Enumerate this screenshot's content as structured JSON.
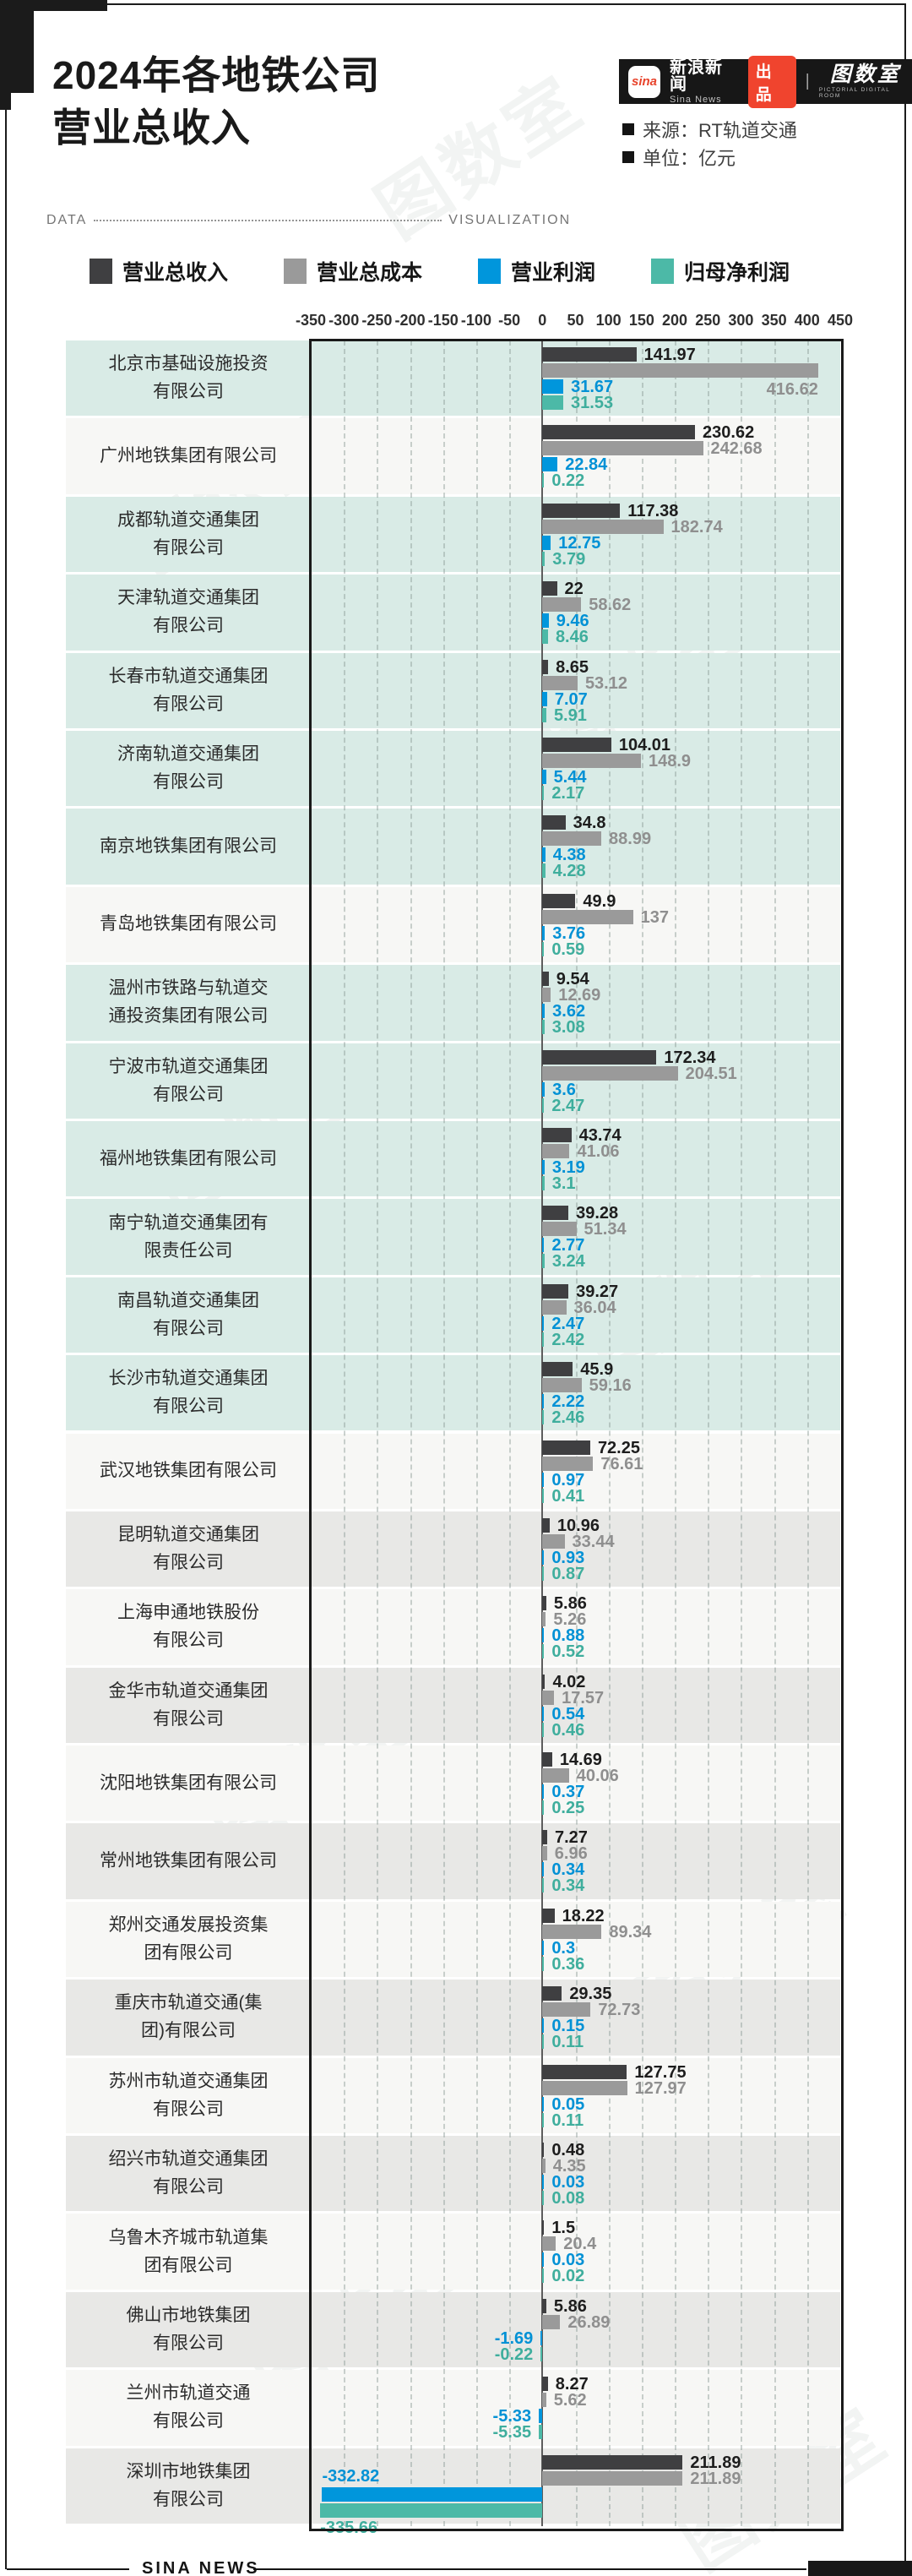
{
  "header": {
    "title_line1": "2024年各地铁公司",
    "title_line2": "营业总收入",
    "brand": {
      "sina_logo_text": "sina",
      "sina_name_cn": "新浪新闻",
      "sina_name_en": "Sina News",
      "badge": "出品",
      "divider": "|",
      "studio_logo": "图数室",
      "studio_sub": "PICTORIAL DIGITAL ROOM"
    },
    "source_line": "来源：RT轨道交通",
    "unit_line": "单位：亿元",
    "data_label": "DATA",
    "viz_label": "VISUALIZATION"
  },
  "footer": {
    "text": "SINA NEWS"
  },
  "watermark_text": "图数室",
  "legend": [
    {
      "label": "营业总收入",
      "color": "#3f3f41"
    },
    {
      "label": "营业总成本",
      "color": "#9a9a9a"
    },
    {
      "label": "营业利润",
      "color": "#0096dc"
    },
    {
      "label": "归母净利润",
      "color": "#4cb9a7"
    }
  ],
  "chart_data": {
    "type": "bar",
    "orientation": "horizontal",
    "title": "2024年各地铁公司营业总收入",
    "unit": "亿元",
    "source": "RT轨道交通",
    "axis": {
      "min": -350,
      "max": 450,
      "step": 50,
      "tick_labels": [
        "-350",
        "-300",
        "-250",
        "-200",
        "-150",
        "-100",
        "-50",
        "0",
        "50",
        "100",
        "150",
        "200",
        "250",
        "300",
        "350",
        "400",
        "450"
      ]
    },
    "series": [
      "营业总收入",
      "营业总成本",
      "营业利润",
      "归母净利润"
    ],
    "series_colors": [
      "#3f3f41",
      "#9a9a9a",
      "#0096dc",
      "#4cb9a7"
    ],
    "label_colors": [
      "#1d1d1d",
      "#8f8f8f",
      "#0191d5",
      "#3fae9d"
    ],
    "band_colors": {
      "teal": "#d9ebe6",
      "white": "#f7f7f5",
      "gray": "#e8e8e6"
    },
    "companies": [
      {
        "name": [
          "北京市基础设施投资",
          "有限公司"
        ],
        "band": "teal",
        "values": [
          141.97,
          416.62,
          31.67,
          31.53
        ],
        "labels": [
          "141.97",
          "416.62",
          "31.67",
          "31.53"
        ],
        "overrides": {
          "1": "below-end"
        }
      },
      {
        "name": [
          "广州地铁集团有限公司"
        ],
        "band": "white",
        "values": [
          230.62,
          242.68,
          22.84,
          0.22
        ],
        "labels": [
          "230.62",
          "242.68",
          "22.84",
          "0.22"
        ]
      },
      {
        "name": [
          "成都轨道交通集团",
          "有限公司"
        ],
        "band": "teal",
        "values": [
          117.38,
          182.74,
          12.75,
          3.79
        ],
        "labels": [
          "117.38",
          "182.74",
          "12.75",
          "3.79"
        ]
      },
      {
        "name": [
          "天津轨道交通集团",
          "有限公司"
        ],
        "band": "teal",
        "values": [
          22,
          58.62,
          9.46,
          8.46
        ],
        "labels": [
          "22",
          "58.62",
          "9.46",
          "8.46"
        ]
      },
      {
        "name": [
          "长春市轨道交通集团",
          "有限公司"
        ],
        "band": "teal",
        "values": [
          8.65,
          53.12,
          7.07,
          5.91
        ],
        "labels": [
          "8.65",
          "53.12",
          "7.07",
          "5.91"
        ]
      },
      {
        "name": [
          "济南轨道交通集团",
          "有限公司"
        ],
        "band": "teal",
        "values": [
          104.01,
          148.9,
          5.44,
          2.17
        ],
        "labels": [
          "104.01",
          "148.9",
          "5.44",
          "2.17"
        ]
      },
      {
        "name": [
          "南京地铁集团有限公司"
        ],
        "band": "teal",
        "values": [
          34.8,
          88.99,
          4.38,
          4.28
        ],
        "labels": [
          "34.8",
          "88.99",
          "4.38",
          "4.28"
        ]
      },
      {
        "name": [
          "青岛地铁集团有限公司"
        ],
        "band": "white",
        "values": [
          49.9,
          137,
          3.76,
          0.59
        ],
        "labels": [
          "49.9",
          "137",
          "3.76",
          "0.59"
        ]
      },
      {
        "name": [
          "温州市铁路与轨道交",
          "通投资集团有限公司"
        ],
        "band": "teal",
        "values": [
          9.54,
          12.69,
          3.62,
          3.08
        ],
        "labels": [
          "9.54",
          "12.69",
          "3.62",
          "3.08"
        ]
      },
      {
        "name": [
          "宁波市轨道交通集团",
          "有限公司"
        ],
        "band": "teal",
        "values": [
          172.34,
          204.51,
          3.6,
          2.47
        ],
        "labels": [
          "172.34",
          "204.51",
          "3.6",
          "2.47"
        ]
      },
      {
        "name": [
          "福州地铁集团有限公司"
        ],
        "band": "teal",
        "values": [
          43.74,
          41.06,
          3.19,
          3.1
        ],
        "labels": [
          "43.74",
          "41.06",
          "3.19",
          "3.1"
        ]
      },
      {
        "name": [
          "南宁轨道交通集团有",
          "限责任公司"
        ],
        "band": "teal",
        "values": [
          39.28,
          51.34,
          2.77,
          3.24
        ],
        "labels": [
          "39.28",
          "51.34",
          "2.77",
          "3.24"
        ]
      },
      {
        "name": [
          "南昌轨道交通集团",
          "有限公司"
        ],
        "band": "teal",
        "values": [
          39.27,
          36.04,
          2.47,
          2.42
        ],
        "labels": [
          "39.27",
          "36.04",
          "2.47",
          "2.42"
        ]
      },
      {
        "name": [
          "长沙市轨道交通集团",
          "有限公司"
        ],
        "band": "teal",
        "values": [
          45.9,
          59.16,
          2.22,
          2.46
        ],
        "labels": [
          "45.9",
          "59.16",
          "2.22",
          "2.46"
        ]
      },
      {
        "name": [
          "武汉地铁集团有限公司"
        ],
        "band": "white",
        "values": [
          72.25,
          76.61,
          0.97,
          0.41
        ],
        "labels": [
          "72.25",
          "76.61",
          "0.97",
          "0.41"
        ]
      },
      {
        "name": [
          "昆明轨道交通集团",
          "有限公司"
        ],
        "band": "gray",
        "values": [
          10.96,
          33.44,
          0.93,
          0.87
        ],
        "labels": [
          "10.96",
          "33.44",
          "0.93",
          "0.87"
        ]
      },
      {
        "name": [
          "上海申通地铁股份",
          "有限公司"
        ],
        "band": "white",
        "values": [
          5.86,
          5.26,
          0.88,
          0.52
        ],
        "labels": [
          "5.86",
          "5.26",
          "0.88",
          "0.52"
        ]
      },
      {
        "name": [
          "金华市轨道交通集团",
          "有限公司"
        ],
        "band": "gray",
        "values": [
          4.02,
          17.57,
          0.54,
          0.46
        ],
        "labels": [
          "4.02",
          "17.57",
          "0.54",
          "0.46"
        ]
      },
      {
        "name": [
          "沈阳地铁集团有限公司"
        ],
        "band": "white",
        "values": [
          14.69,
          40.06,
          0.37,
          0.25
        ],
        "labels": [
          "14.69",
          "40.06",
          "0.37",
          "0.25"
        ]
      },
      {
        "name": [
          "常州地铁集团有限公司"
        ],
        "band": "gray",
        "values": [
          7.27,
          6.96,
          0.34,
          0.34
        ],
        "labels": [
          "7.27",
          "6.96",
          "0.34",
          "0.34"
        ]
      },
      {
        "name": [
          "郑州交通发展投资集",
          "团有限公司"
        ],
        "band": "white",
        "values": [
          18.22,
          89.34,
          0.3,
          0.36
        ],
        "labels": [
          "18.22",
          "89.34",
          "0.3",
          "0.36"
        ]
      },
      {
        "name": [
          "重庆市轨道交通(集",
          "团)有限公司"
        ],
        "band": "gray",
        "values": [
          29.35,
          72.73,
          0.15,
          0.11
        ],
        "labels": [
          "29.35",
          "72.73",
          "0.15",
          "0.11"
        ]
      },
      {
        "name": [
          "苏州市轨道交通集团",
          "有限公司"
        ],
        "band": "white",
        "values": [
          127.75,
          127.97,
          0.05,
          0.11
        ],
        "labels": [
          "127.75",
          "127.97",
          "0.05",
          "0.11"
        ]
      },
      {
        "name": [
          "绍兴市轨道交通集团",
          "有限公司"
        ],
        "band": "gray",
        "values": [
          0.48,
          4.35,
          0.03,
          0.08
        ],
        "labels": [
          "0.48",
          "4.35",
          "0.03",
          "0.08"
        ]
      },
      {
        "name": [
          "乌鲁木齐城市轨道集",
          "团有限公司"
        ],
        "band": "white",
        "values": [
          1.5,
          20.4,
          0.03,
          0.02
        ],
        "labels": [
          "1.5",
          "20.4",
          "0.03",
          "0.02"
        ]
      },
      {
        "name": [
          "佛山市地铁集团",
          "有限公司"
        ],
        "band": "gray",
        "values": [
          5.86,
          26.89,
          -1.69,
          -0.22
        ],
        "labels": [
          "5.86",
          "26.89",
          "-1.69",
          "-0.22"
        ]
      },
      {
        "name": [
          "兰州市轨道交通",
          "有限公司"
        ],
        "band": "white",
        "values": [
          8.27,
          5.62,
          -5.33,
          -5.35
        ],
        "labels": [
          "8.27",
          "5.62",
          "-5.33",
          "-5.35"
        ]
      },
      {
        "name": [
          "深圳市地铁集团",
          "有限公司"
        ],
        "band": "gray",
        "values": [
          211.89,
          211.89,
          -332.82,
          -335.66
        ],
        "labels": [
          "211.89",
          "211.89",
          "-332.82",
          "-335.66"
        ],
        "overrides": {
          "2": "above-start",
          "3": "below-start"
        }
      }
    ]
  }
}
